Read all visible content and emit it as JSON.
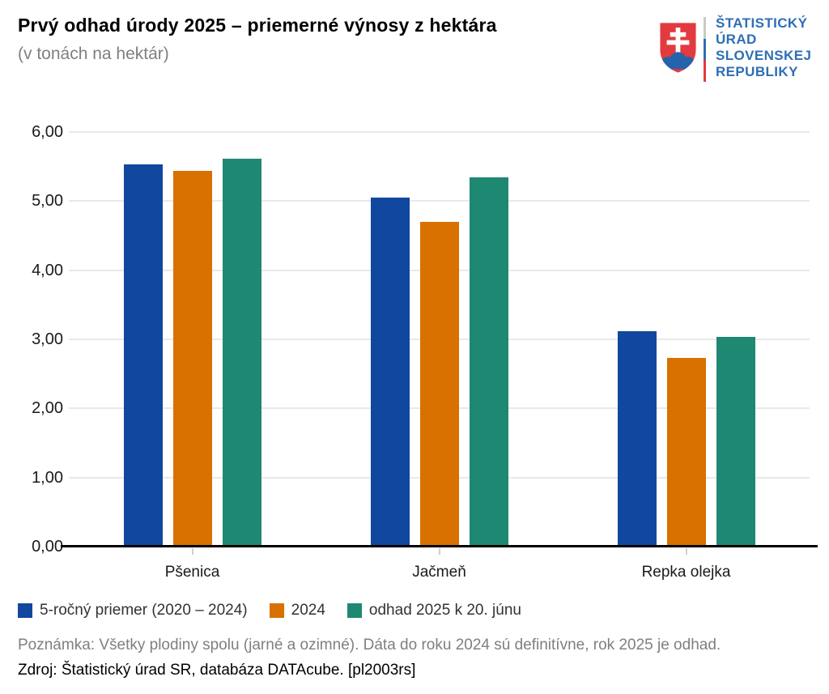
{
  "page": {
    "background": "#ffffff"
  },
  "header": {
    "title": "Prvý odhad úrody 2025 – priemerné výnosy z hektára",
    "subtitle": "(v tonách na hektár)"
  },
  "logo": {
    "org_lines": [
      "ŠTATISTICKÝ",
      "ÚRAD",
      "SLOVENSKEJ",
      "REPUBLIKY"
    ],
    "text_color": "#2e6eb5",
    "shield_red": "#e23a3f",
    "shield_blue": "#2563ac",
    "divider_colors": [
      "#c9c9c9",
      "#2e6eb5",
      "#e23a3f"
    ]
  },
  "chart_data": {
    "type": "bar",
    "title": "Prvý odhad úrody 2025 – priemerné výnosy z hektára",
    "subtitle": "(v tonách na hektár)",
    "unit": "t/ha",
    "categories": [
      "Pšenica",
      "Jačmeň",
      "Repka olejka"
    ],
    "series": [
      {
        "name": "5-ročný priemer (2020 – 2024)",
        "color": "#11479f",
        "values": [
          5.53,
          5.05,
          3.12
        ]
      },
      {
        "name": "2024",
        "color": "#d87100",
        "values": [
          5.44,
          4.7,
          2.73
        ]
      },
      {
        "name": "odhad 2025 k 20. júnu",
        "color": "#1f8873",
        "values": [
          5.61,
          5.34,
          3.03
        ]
      }
    ],
    "ylim": [
      0,
      6
    ],
    "ytick_step": 1,
    "ytick_labels": [
      "0,00",
      "1,00",
      "2,00",
      "3,00",
      "4,00",
      "5,00",
      "6,00"
    ],
    "grid": "horizontal-light",
    "gridline_color": "#e9e9e9",
    "axis_color": "#000000",
    "legend_position": "bottom-left"
  },
  "footer": {
    "note": "Poznámka: Všetky plodiny spolu (jarné a ozimné). Dáta do roku 2024 sú definitívne, rok 2025 je odhad.",
    "source": "Zdroj: Štatistický úrad SR, databáza DATAcube. [pl2003rs]"
  }
}
